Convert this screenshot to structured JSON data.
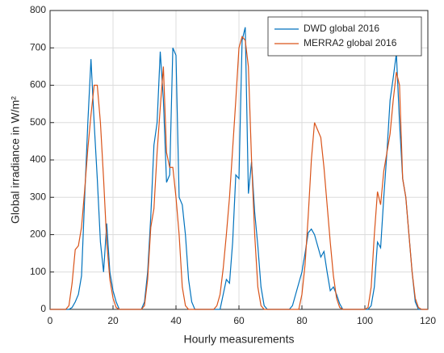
{
  "chart_data": {
    "type": "line",
    "xlabel": "Hourly measurements",
    "ylabel": "Global irradiance in W/m²",
    "x": [
      0,
      1,
      2,
      3,
      4,
      5,
      6,
      7,
      8,
      9,
      10,
      11,
      12,
      13,
      14,
      15,
      16,
      17,
      18,
      19,
      20,
      21,
      22,
      23,
      24,
      25,
      26,
      27,
      28,
      29,
      30,
      31,
      32,
      33,
      34,
      35,
      36,
      37,
      38,
      39,
      40,
      41,
      42,
      43,
      44,
      45,
      46,
      47,
      48,
      49,
      50,
      51,
      52,
      53,
      54,
      55,
      56,
      57,
      58,
      59,
      60,
      61,
      62,
      63,
      64,
      65,
      66,
      67,
      68,
      69,
      70,
      71,
      72,
      73,
      74,
      75,
      76,
      77,
      78,
      79,
      80,
      81,
      82,
      83,
      84,
      85,
      86,
      87,
      88,
      89,
      90,
      91,
      92,
      93,
      94,
      95,
      96,
      97,
      98,
      99,
      100,
      101,
      102,
      103,
      104,
      105,
      106,
      107,
      108,
      109,
      110,
      111,
      112,
      113,
      114,
      115,
      116,
      117,
      118,
      119,
      120
    ],
    "series": [
      {
        "name": "DWD global 2016",
        "color": "#0072bd",
        "values": [
          0,
          0,
          0,
          0,
          0,
          0,
          0,
          5,
          20,
          40,
          90,
          300,
          500,
          670,
          500,
          350,
          180,
          100,
          230,
          100,
          50,
          20,
          0,
          0,
          0,
          0,
          0,
          0,
          0,
          0,
          20,
          100,
          250,
          440,
          500,
          690,
          560,
          340,
          360,
          700,
          680,
          300,
          280,
          200,
          80,
          20,
          0,
          0,
          0,
          0,
          0,
          0,
          0,
          0,
          0,
          40,
          80,
          70,
          180,
          360,
          350,
          720,
          755,
          310,
          395,
          260,
          170,
          60,
          10,
          0,
          0,
          0,
          0,
          0,
          0,
          0,
          0,
          10,
          40,
          70,
          100,
          150,
          205,
          215,
          200,
          170,
          140,
          155,
          100,
          50,
          60,
          40,
          15,
          0,
          0,
          0,
          0,
          0,
          0,
          0,
          0,
          0,
          10,
          60,
          180,
          165,
          300,
          420,
          560,
          620,
          685,
          500,
          350,
          300,
          200,
          100,
          20,
          0,
          0,
          0,
          0
        ]
      },
      {
        "name": "MERRA2 global 2016",
        "color": "#d95319",
        "values": [
          0,
          0,
          0,
          0,
          0,
          0,
          10,
          70,
          160,
          170,
          220,
          320,
          430,
          520,
          600,
          600,
          500,
          350,
          180,
          80,
          30,
          5,
          0,
          0,
          0,
          0,
          0,
          0,
          0,
          0,
          10,
          80,
          220,
          270,
          420,
          540,
          650,
          420,
          380,
          380,
          300,
          200,
          60,
          10,
          0,
          0,
          0,
          0,
          0,
          0,
          0,
          0,
          0,
          10,
          40,
          110,
          200,
          300,
          430,
          560,
          700,
          730,
          720,
          650,
          400,
          200,
          60,
          10,
          0,
          0,
          0,
          0,
          0,
          0,
          0,
          0,
          0,
          0,
          0,
          0,
          40,
          120,
          250,
          400,
          500,
          480,
          460,
          380,
          280,
          180,
          90,
          30,
          5,
          0,
          0,
          0,
          0,
          0,
          0,
          0,
          0,
          5,
          60,
          200,
          315,
          280,
          370,
          420,
          470,
          560,
          635,
          600,
          350,
          300,
          200,
          100,
          30,
          5,
          0,
          0,
          0
        ]
      }
    ],
    "xlim": [
      0,
      120
    ],
    "xticks": [
      0,
      20,
      40,
      60,
      80,
      100,
      120
    ],
    "ylim": [
      0,
      800
    ],
    "yticks": [
      0,
      100,
      200,
      300,
      400,
      500,
      600,
      700,
      800
    ],
    "grid": true,
    "legend": "northeast"
  }
}
